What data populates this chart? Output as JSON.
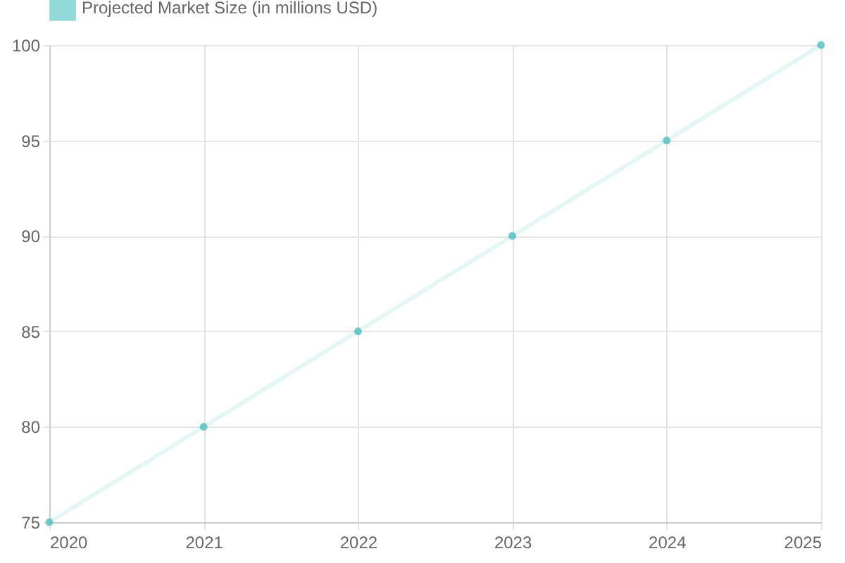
{
  "chart_data": {
    "type": "line",
    "x": [
      2020,
      2021,
      2022,
      2023,
      2024,
      2025
    ],
    "series": [
      {
        "name": "Projected Market Size (in millions USD)",
        "color": "#4bc0c0",
        "values": [
          75,
          80,
          85,
          90,
          95,
          100
        ]
      }
    ],
    "xlim": [
      2020,
      2025
    ],
    "xticks": [
      2020,
      2021,
      2022,
      2023,
      2024,
      2025
    ],
    "ylim": [
      75,
      100
    ],
    "yticks": [
      75,
      80,
      85,
      90,
      95,
      100
    ],
    "grid": true,
    "legend": "top",
    "marker": "circle",
    "line_style": "solid"
  }
}
